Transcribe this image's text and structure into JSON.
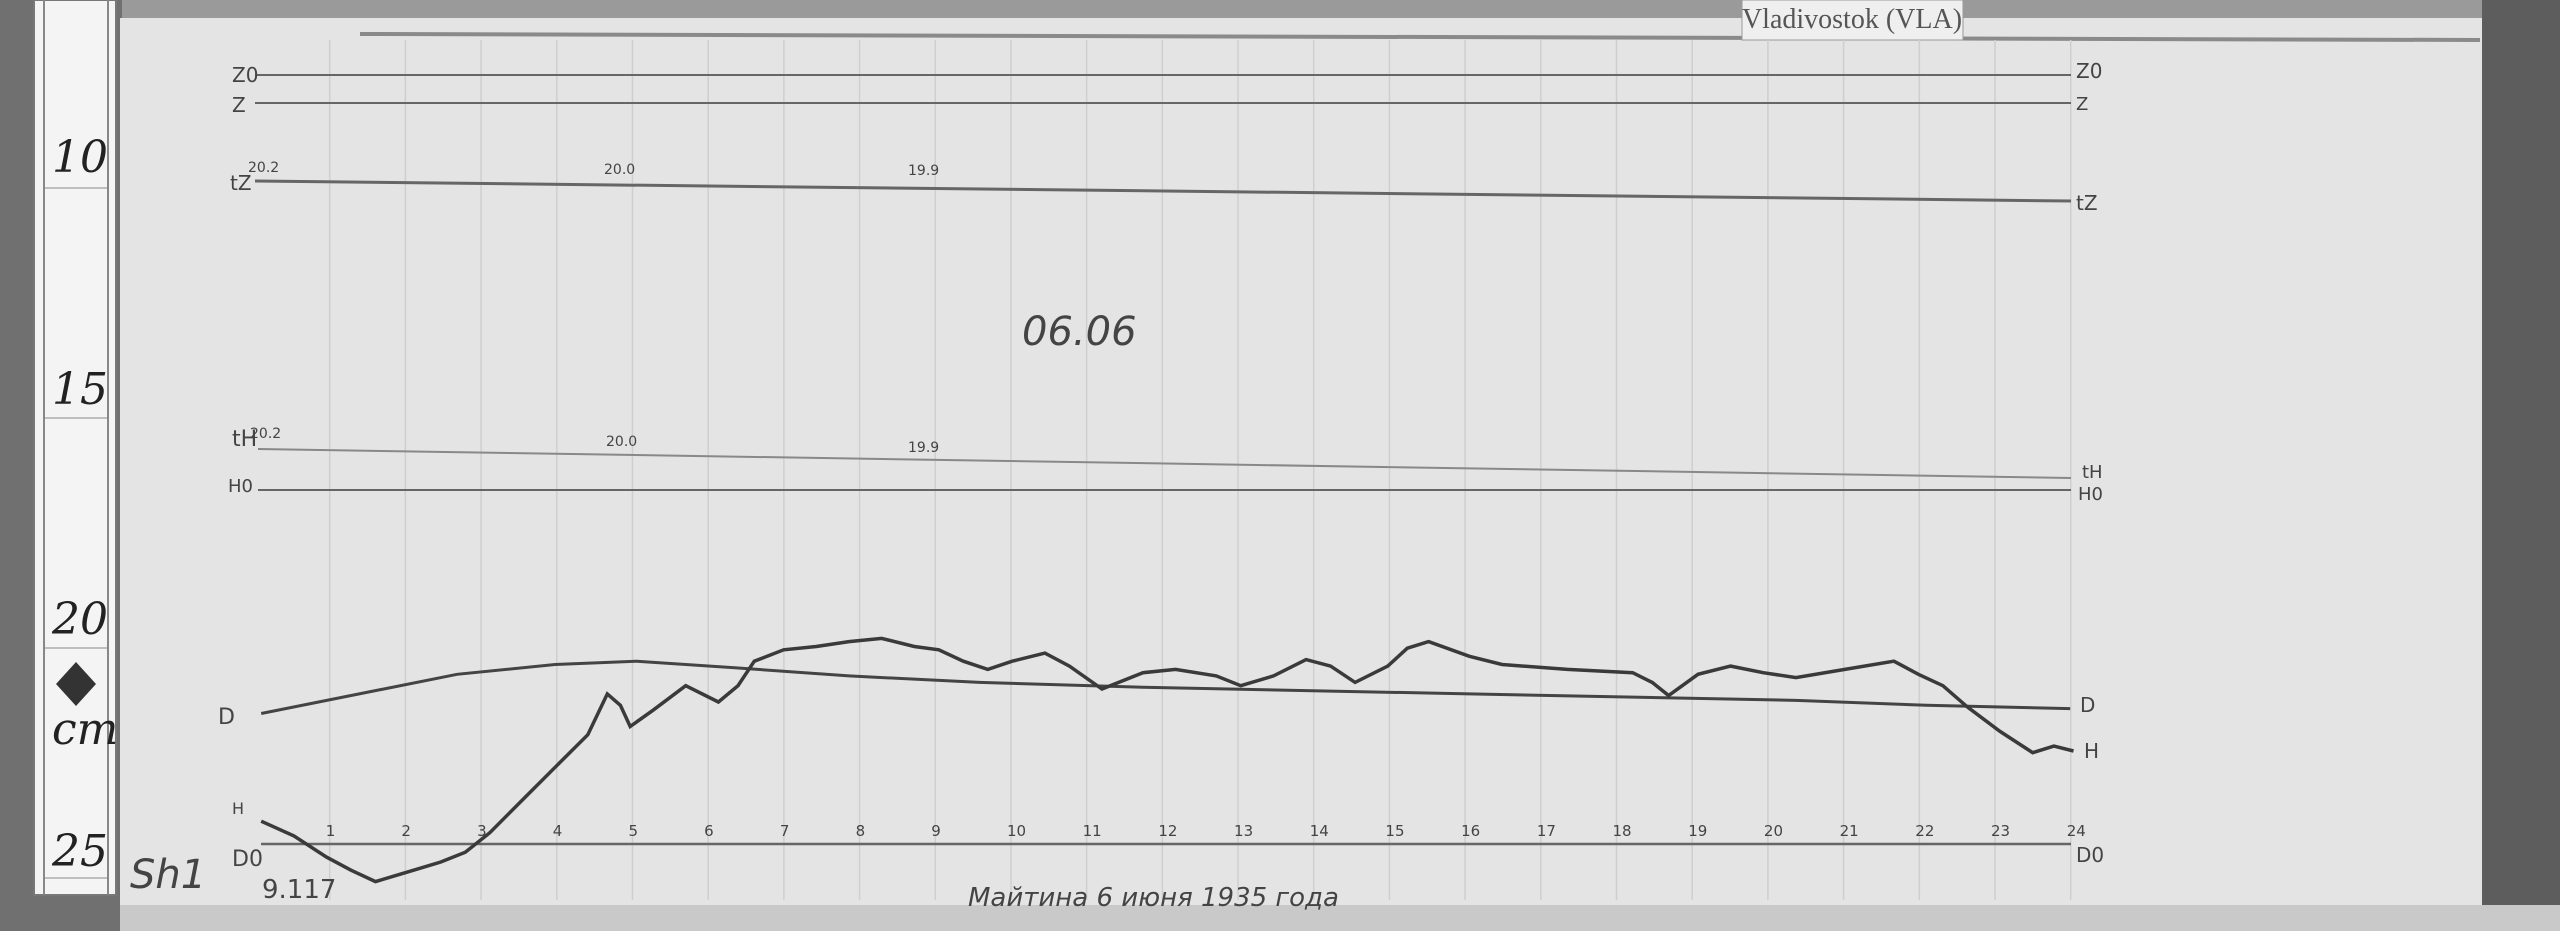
{
  "station_label": "Vladivostok (VLA)",
  "date_mark": "06.06",
  "footer_note": "Майтина 6 июня 1935 года",
  "sheet_code": "Sh1",
  "sheet_number": "9.117",
  "ruler": {
    "marks": [
      "10",
      "15",
      "20",
      "25"
    ],
    "unit": "cm"
  },
  "traces": {
    "z_top_left": "Z0",
    "z_left": "Z",
    "z_top_right": "Z0",
    "z_right": "Z",
    "tz_left": "tZ",
    "tz_right": "tZ",
    "th_left": "tH",
    "th_right": "tH",
    "h0_left": "H0",
    "h0_right": "H0",
    "d_left": "D",
    "d_right": "D",
    "h_right": "H",
    "base_left_top": "H",
    "base_left_bottom": "D0",
    "base_right": "D0",
    "temp_readings": [
      "20.2",
      "20.0",
      "19.9"
    ]
  },
  "hours": [
    "1",
    "2",
    "3",
    "4",
    "5",
    "6",
    "7",
    "8",
    "9",
    "10",
    "11",
    "12",
    "13",
    "14",
    "15",
    "16",
    "17",
    "18",
    "19",
    "20",
    "21",
    "22",
    "23",
    "24"
  ]
}
